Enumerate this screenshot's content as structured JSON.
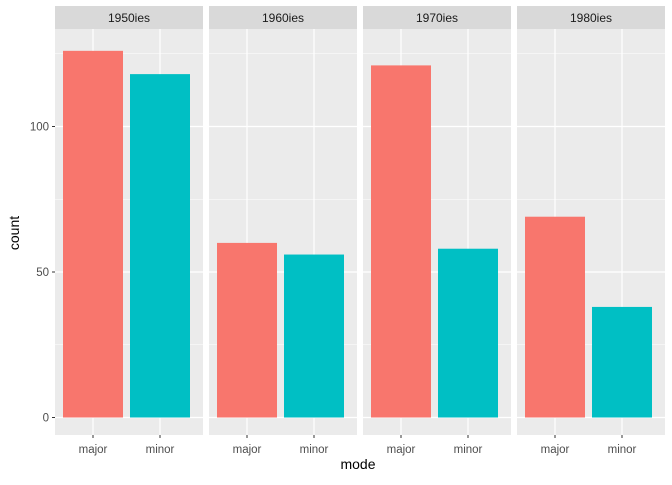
{
  "chart_data": {
    "type": "bar",
    "layout": "faceted",
    "xlabel": "mode",
    "ylabel": "count",
    "ylim": [
      0,
      130
    ],
    "y_ticks": [
      0,
      50,
      100
    ],
    "categories": [
      "major",
      "minor"
    ],
    "colors": {
      "major": "#F8766D",
      "minor": "#00BFC4",
      "panel_bg": "#EBEBEB",
      "strip_bg": "#D9D9D9",
      "grid": "#FFFFFF"
    },
    "grid": true,
    "legend": "none",
    "facets": [
      {
        "label": "1950ies",
        "values": [
          126,
          118
        ]
      },
      {
        "label": "1960ies",
        "values": [
          60,
          56
        ]
      },
      {
        "label": "1970ies",
        "values": [
          121,
          58
        ]
      },
      {
        "label": "1980ies",
        "values": [
          69,
          38
        ]
      }
    ]
  }
}
